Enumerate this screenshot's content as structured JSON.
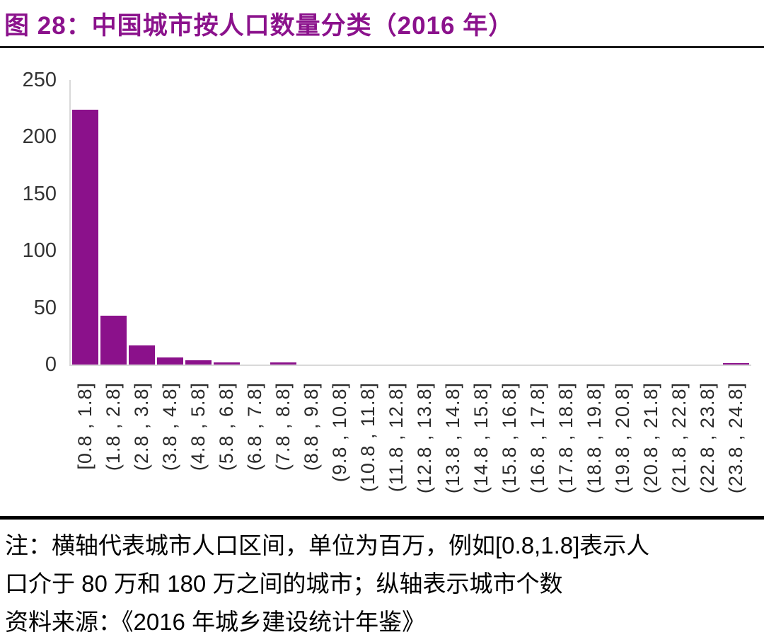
{
  "figure": {
    "title": "图 28：中国城市按人口数量分类（2016 年）",
    "note_line1": "注：横轴代表城市人口区间，单位为百万，例如[0.8,1.8]表示人",
    "note_line2": "口介于 80 万和 180 万之间的城市；纵轴表示城市个数",
    "source_line": "资料来源：《2016 年城乡建设统计年鉴》"
  },
  "colors": {
    "bar": "#8B118B",
    "title_text": "#8B128C",
    "axis_line": "#D9D9D9",
    "tick_text": "#333333",
    "note_text": "#000000",
    "rule": "#000000"
  },
  "chart_data": {
    "type": "bar",
    "title": "中国城市按人口数量分类（2016 年）",
    "categories": [
      "[0.8 , 1.8]",
      "(1.8 , 2.8]",
      "(2.8 , 3.8]",
      "(3.8 , 4.8]",
      "(4.8 , 5.8]",
      "(5.8 , 6.8]",
      "(6.8 , 7.8]",
      "(7.8 , 8.8]",
      "(8.8 , 9.8]",
      "(9.8 , 10.8]",
      "(10.8 , 11.8]",
      "(11.8 , 12.8]",
      "(12.8 , 13.8]",
      "(13.8 , 14.8]",
      "(14.8 , 15.8]",
      "(15.8 , 16.8]",
      "(16.8 , 17.8]",
      "(17.8 , 18.8]",
      "(18.8 , 19.8]",
      "(19.8 , 20.8]",
      "(20.8 , 21.8]",
      "(21.8 , 22.8]",
      "(22.8 , 23.8]",
      "(23.8 , 24.8]"
    ],
    "values": [
      224,
      43,
      17,
      6,
      4,
      2,
      0,
      2,
      0,
      0,
      0,
      0,
      0,
      0,
      0,
      0,
      0,
      0,
      0,
      0,
      0,
      0,
      0,
      1
    ],
    "xlabel": "",
    "ylabel": "",
    "ylim": [
      0,
      250
    ],
    "yticks": [
      0,
      50,
      100,
      150,
      200,
      250
    ],
    "grid": false,
    "legend": false,
    "bar_color": "#8B118B"
  }
}
